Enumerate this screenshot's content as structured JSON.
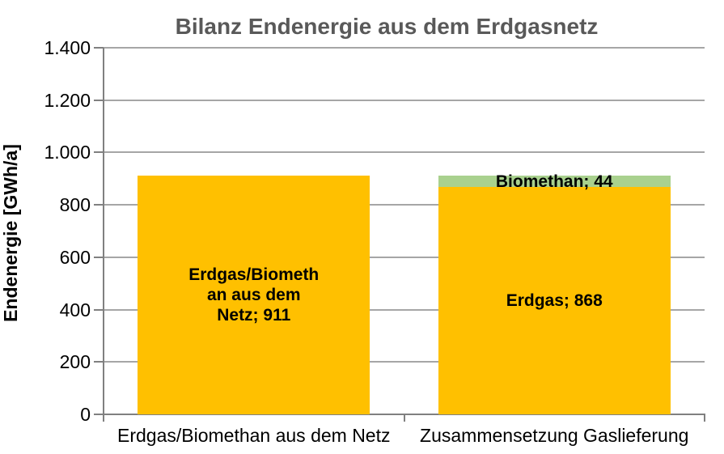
{
  "chart_data": {
    "type": "bar",
    "stacked": true,
    "title": "Bilanz Endenergie aus dem Erdgasnetz",
    "ylabel": "Endenergie [GWh/a]",
    "xlabel": "",
    "ylim": [
      0,
      1400
    ],
    "grid": true,
    "legend": "none",
    "yticks": [
      {
        "value": 0,
        "label": "0"
      },
      {
        "value": 200,
        "label": "200"
      },
      {
        "value": 400,
        "label": "400"
      },
      {
        "value": 600,
        "label": "600"
      },
      {
        "value": 800,
        "label": "800"
      },
      {
        "value": 1000,
        "label": "1.000"
      },
      {
        "value": 1200,
        "label": "1.200"
      },
      {
        "value": 1400,
        "label": "1.400"
      }
    ],
    "categories": [
      "Erdgas/Biomethan aus dem Netz",
      "Zusammensetzung Gaslieferung"
    ],
    "bars": [
      {
        "category": "Erdgas/Biomethan aus dem Netz",
        "segments": [
          {
            "name": "Erdgas/Biomethan aus dem Netz",
            "value": 911,
            "color": "#FFC000",
            "label_lines": [
              "Erdgas/Biometh",
              "an aus dem",
              "Netz; 911"
            ]
          }
        ]
      },
      {
        "category": "Zusammensetzung Gaslieferung",
        "segments": [
          {
            "name": "Erdgas",
            "value": 868,
            "color": "#FFC000",
            "label_lines": [
              "Erdgas; 868"
            ]
          },
          {
            "name": "Biomethan",
            "value": 44,
            "color": "#A9D18E",
            "label_lines": [
              "Biomethan; 44"
            ]
          }
        ]
      }
    ]
  },
  "colors": {
    "title": "#595959",
    "axis": "#808080",
    "gridline": "#A6A6A6",
    "bar_yellow": "#FFC000",
    "bar_green": "#A9D18E",
    "text": "#000000"
  }
}
